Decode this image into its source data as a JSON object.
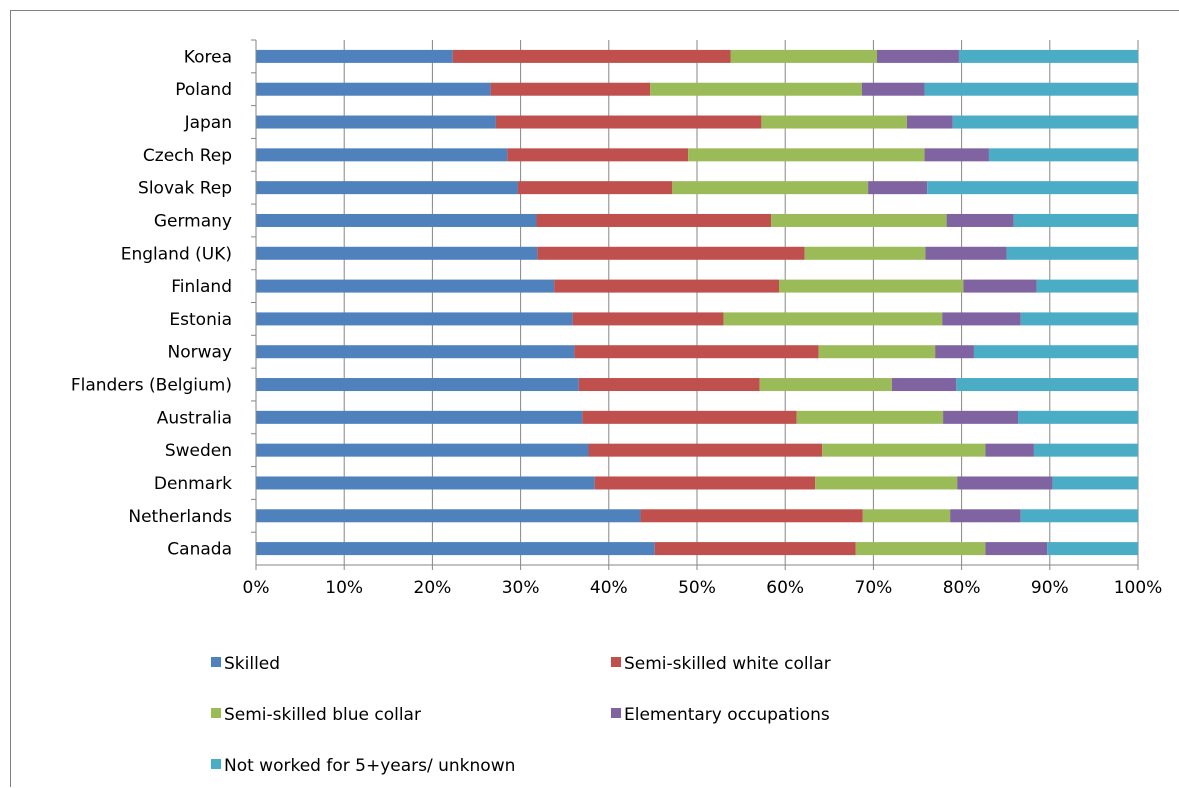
{
  "chart_data": {
    "type": "bar",
    "orientation": "horizontal",
    "stacked": "percent",
    "categories": [
      "Korea",
      "Poland",
      "Japan",
      "Czech Rep",
      "Slovak Rep",
      "Germany",
      "England (UK)",
      "Finland",
      "Estonia",
      "Norway",
      "Flanders (Belgium)",
      "Australia",
      "Sweden",
      "Denmark",
      "Netherlands",
      "Canada"
    ],
    "series": [
      {
        "name": "Skilled",
        "color": "#4f81bd",
        "values": [
          22.3,
          26.6,
          27.2,
          28.5,
          29.7,
          31.8,
          31.9,
          33.8,
          35.9,
          36.1,
          36.6,
          37.0,
          37.7,
          38.4,
          43.6,
          45.2
        ]
      },
      {
        "name": "Semi-skilled white collar",
        "color": "#c0504d",
        "values": [
          31.5,
          18.1,
          30.1,
          20.5,
          17.5,
          26.6,
          30.3,
          25.5,
          17.1,
          27.7,
          20.5,
          24.3,
          26.5,
          25.0,
          25.2,
          22.8
        ]
      },
      {
        "name": "Semi-skilled blue collar",
        "color": "#9bbb59",
        "values": [
          16.6,
          24.0,
          16.5,
          26.8,
          22.2,
          19.9,
          13.7,
          20.9,
          24.8,
          13.2,
          15.0,
          16.6,
          18.5,
          16.1,
          9.9,
          14.7
        ]
      },
      {
        "name": "Elementary occupations",
        "color": "#8064a2",
        "values": [
          9.3,
          7.1,
          5.2,
          7.3,
          6.7,
          7.6,
          9.2,
          8.3,
          8.9,
          4.4,
          7.3,
          8.5,
          5.5,
          10.8,
          8.0,
          7.0
        ]
      },
      {
        "name": "Not worked for 5+years/ unknown",
        "color": "#4bacc6",
        "values": [
          20.3,
          24.2,
          21.0,
          16.9,
          23.9,
          14.1,
          14.9,
          11.5,
          13.3,
          18.6,
          20.6,
          13.6,
          11.8,
          9.7,
          13.3,
          10.3
        ]
      }
    ],
    "xlim": [
      0,
      100
    ],
    "xticks": [
      "0%",
      "10%",
      "20%",
      "30%",
      "40%",
      "50%",
      "60%",
      "70%",
      "80%",
      "90%",
      "100%"
    ],
    "grid": "vertical",
    "legend": "bottom"
  }
}
